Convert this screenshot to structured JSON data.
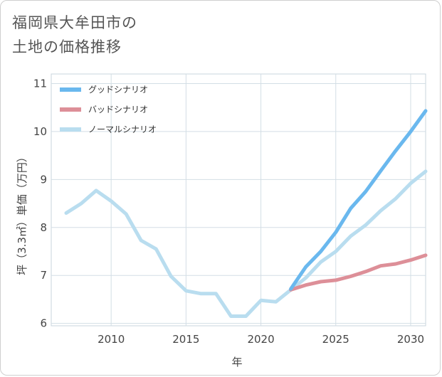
{
  "title": {
    "line1": "福岡県大牟田市の",
    "line2": "土地の価格推移"
  },
  "chart_data": {
    "type": "line",
    "title": "福岡県大牟田市の土地の価格推移",
    "xlabel": "年",
    "ylabel": "坪（3.3㎡）単価（万円）",
    "xlim": [
      2006,
      2031
    ],
    "ylim": [
      5.95,
      11.2
    ],
    "xticks": [
      2010,
      2015,
      2020,
      2025,
      2030
    ],
    "yticks": [
      6,
      7,
      8,
      9,
      10,
      11
    ],
    "grid": true,
    "legend_position": "top-left",
    "series": [
      {
        "name": "グッドシナリオ",
        "color": "#6ab8ee",
        "x": [
          2022,
          2023,
          2024,
          2025,
          2026,
          2027,
          2028,
          2029,
          2030,
          2031
        ],
        "values": [
          6.72,
          7.18,
          7.5,
          7.9,
          8.4,
          8.75,
          9.18,
          9.6,
          10.0,
          10.43
        ]
      },
      {
        "name": "バッドシナリオ",
        "color": "#dd8f98",
        "x": [
          2022,
          2023,
          2024,
          2025,
          2026,
          2027,
          2028,
          2029,
          2030,
          2031
        ],
        "values": [
          6.7,
          6.8,
          6.87,
          6.9,
          6.98,
          7.08,
          7.2,
          7.24,
          7.32,
          7.42
        ]
      },
      {
        "name": "ノーマルシナリオ",
        "color": "#b9ddef",
        "x": [
          2007,
          2008,
          2009,
          2010,
          2011,
          2012,
          2013,
          2014,
          2015,
          2016,
          2017,
          2018,
          2019,
          2020,
          2021,
          2022,
          2023,
          2024,
          2025,
          2026,
          2027,
          2028,
          2029,
          2030,
          2031
        ],
        "values": [
          8.3,
          8.5,
          8.77,
          8.55,
          8.28,
          7.73,
          7.55,
          6.98,
          6.68,
          6.62,
          6.62,
          6.15,
          6.15,
          6.48,
          6.45,
          6.7,
          6.95,
          7.28,
          7.5,
          7.82,
          8.05,
          8.35,
          8.6,
          8.92,
          9.17
        ]
      }
    ]
  }
}
